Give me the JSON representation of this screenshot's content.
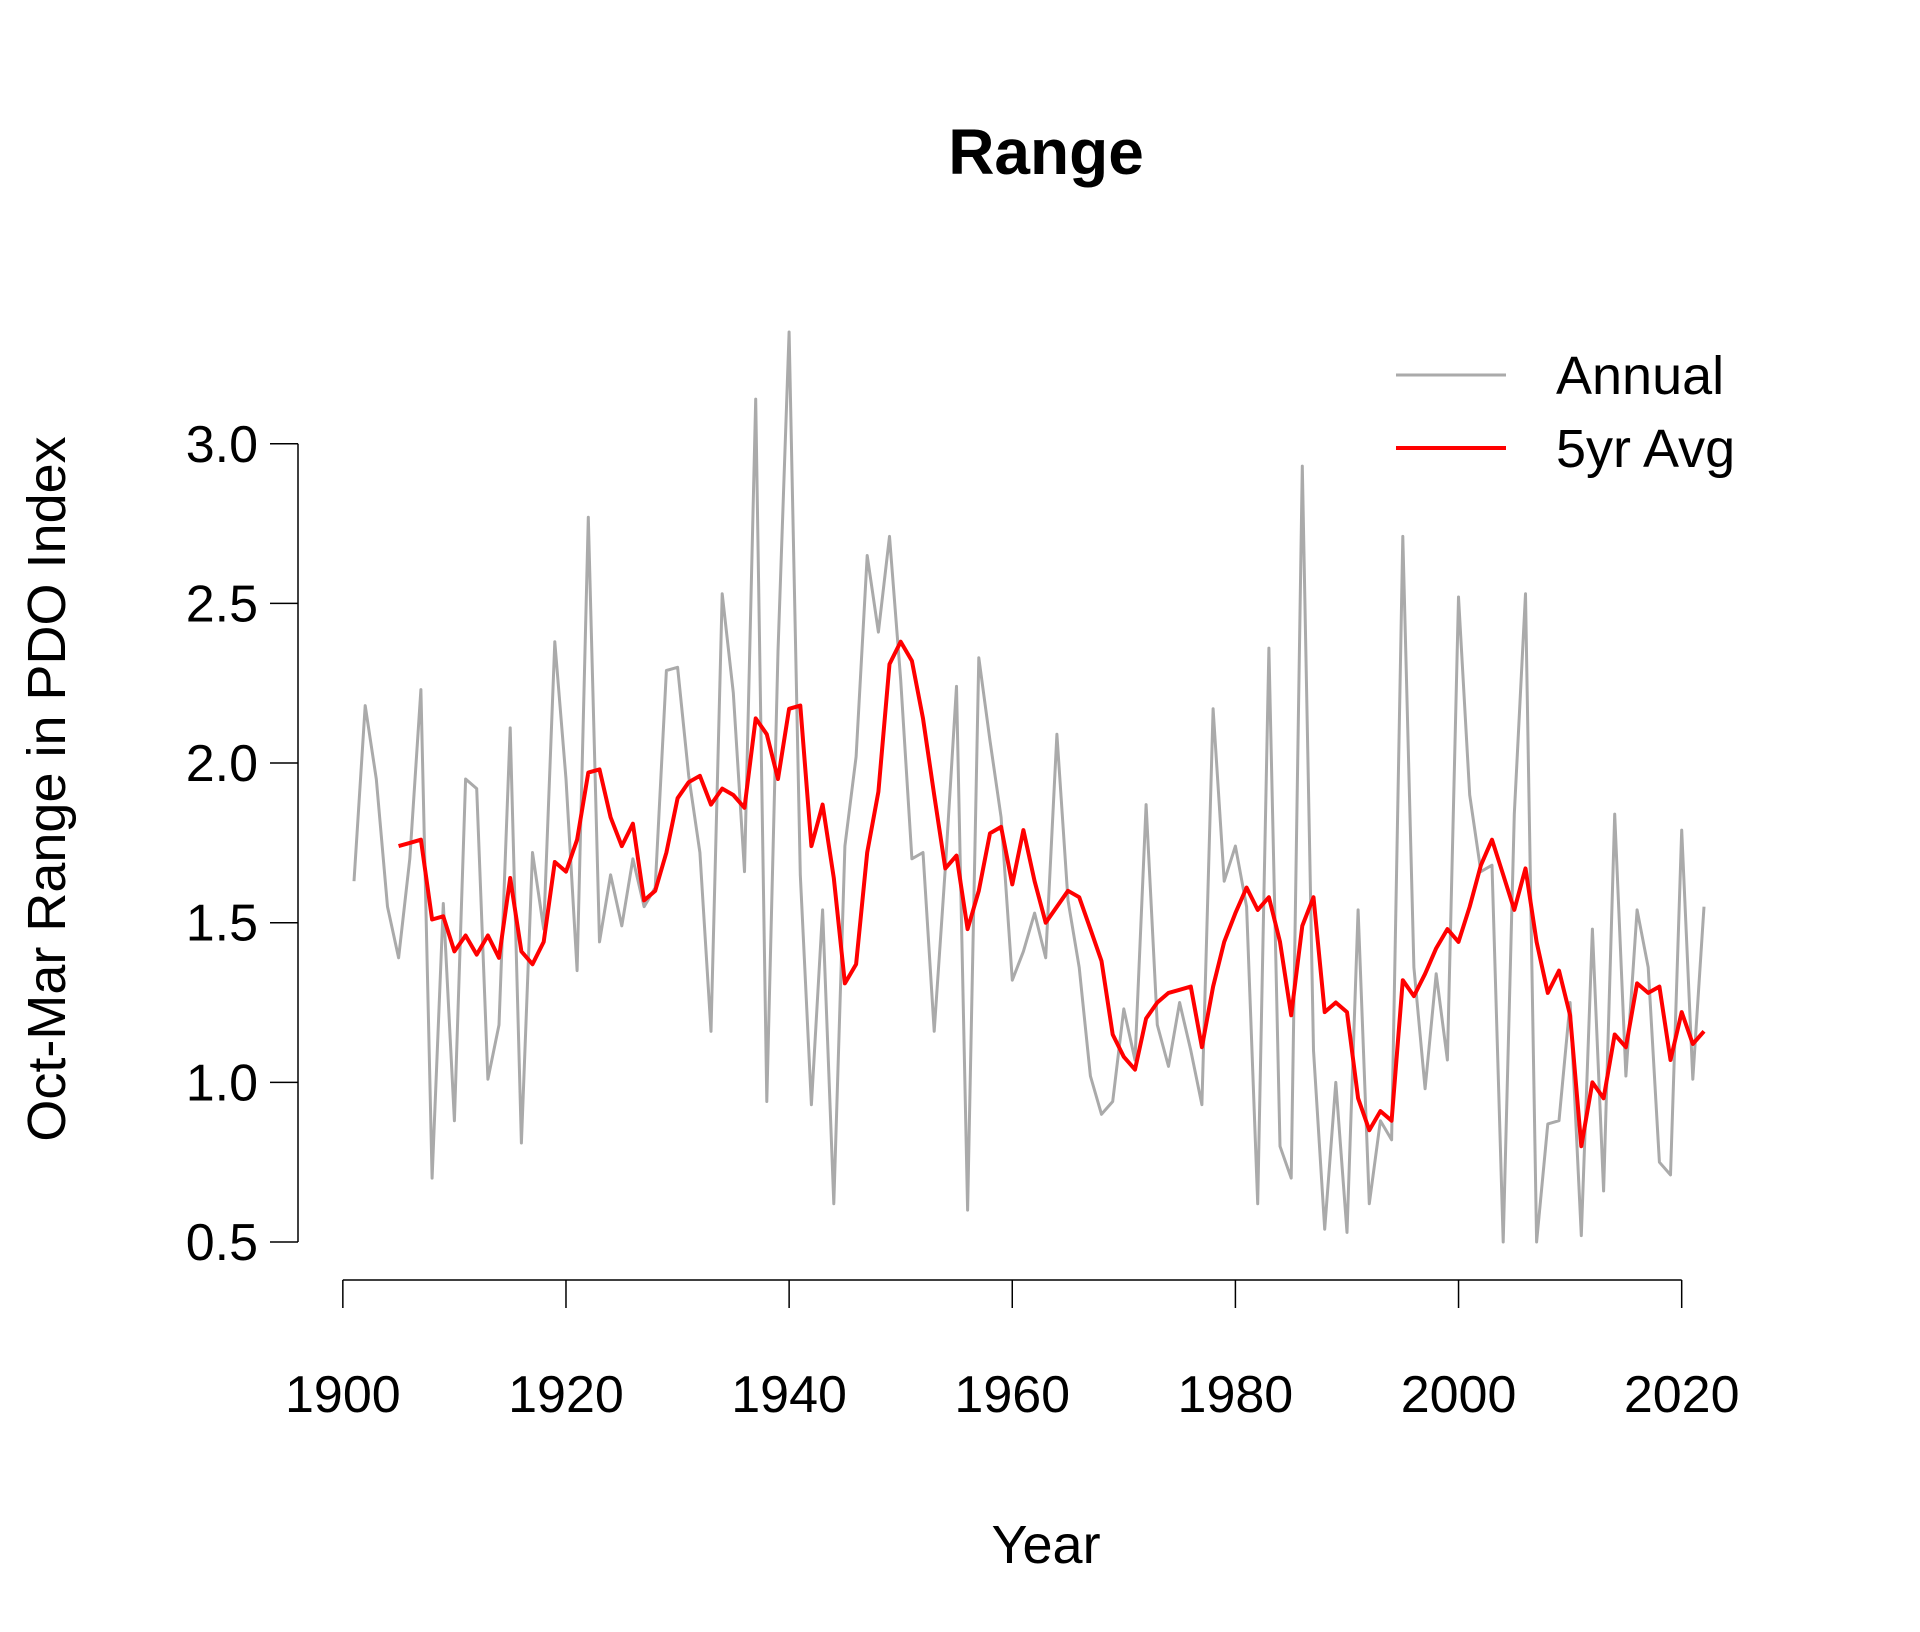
{
  "chart_data": {
    "type": "line",
    "title": "Range",
    "xlabel": "Year",
    "ylabel": "Oct-Mar Range in PDO Index",
    "xlim": [
      1901,
      2022
    ],
    "ylim": [
      0.5,
      3.35
    ],
    "xticks": [
      1900,
      1920,
      1940,
      1960,
      1980,
      2000,
      2020
    ],
    "xtick_labels": [
      "1900",
      "1920",
      "1940",
      "1960",
      "1980",
      "2000",
      "2020"
    ],
    "yticks": [
      0.5,
      1.0,
      1.5,
      2.0,
      2.5,
      3.0
    ],
    "ytick_labels": [
      "0.5",
      "1.0",
      "1.5",
      "2.0",
      "2.5",
      "3.0"
    ],
    "grid": false,
    "legend_position": "top-right",
    "series": [
      {
        "name": "Annual",
        "color": "#aaaaaa",
        "x": [
          1901,
          1902,
          1903,
          1904,
          1905,
          1906,
          1907,
          1908,
          1909,
          1910,
          1911,
          1912,
          1913,
          1914,
          1915,
          1916,
          1917,
          1918,
          1919,
          1920,
          1921,
          1922,
          1923,
          1924,
          1925,
          1926,
          1927,
          1928,
          1929,
          1930,
          1931,
          1932,
          1933,
          1934,
          1935,
          1936,
          1937,
          1938,
          1939,
          1940,
          1941,
          1942,
          1943,
          1944,
          1945,
          1946,
          1947,
          1948,
          1949,
          1950,
          1951,
          1952,
          1953,
          1954,
          1955,
          1956,
          1957,
          1958,
          1959,
          1960,
          1961,
          1962,
          1963,
          1964,
          1965,
          1966,
          1967,
          1968,
          1969,
          1970,
          1971,
          1972,
          1973,
          1974,
          1975,
          1976,
          1977,
          1978,
          1979,
          1980,
          1981,
          1982,
          1983,
          1984,
          1985,
          1986,
          1987,
          1988,
          1989,
          1990,
          1991,
          1992,
          1993,
          1994,
          1995,
          1996,
          1997,
          1998,
          1999,
          2000,
          2001,
          2002,
          2003,
          2004,
          2005,
          2006,
          2007,
          2008,
          2009,
          2010,
          2011,
          2012,
          2013,
          2014,
          2015,
          2016,
          2017,
          2018,
          2019,
          2020,
          2021,
          2022
        ],
        "values": [
          1.63,
          2.18,
          1.95,
          1.55,
          1.39,
          1.7,
          2.23,
          0.7,
          1.56,
          0.88,
          1.95,
          1.92,
          1.01,
          1.18,
          2.11,
          0.81,
          1.72,
          1.48,
          2.38,
          1.95,
          1.35,
          2.77,
          1.44,
          1.65,
          1.49,
          1.7,
          1.55,
          1.61,
          2.29,
          2.3,
          1.96,
          1.72,
          1.16,
          2.53,
          2.22,
          1.66,
          3.14,
          0.94,
          2.35,
          3.35,
          1.65,
          0.93,
          1.54,
          0.62,
          1.74,
          2.02,
          2.65,
          2.41,
          2.71,
          2.26,
          1.7,
          1.72,
          1.16,
          1.67,
          2.24,
          0.6,
          2.33,
          2.07,
          1.83,
          1.32,
          1.41,
          1.53,
          1.39,
          2.09,
          1.57,
          1.36,
          1.02,
          0.9,
          0.94,
          1.23,
          1.07,
          1.87,
          1.18,
          1.05,
          1.25,
          1.1,
          0.93,
          2.17,
          1.63,
          1.74,
          1.55,
          0.62,
          2.36,
          0.8,
          0.7,
          2.93,
          1.1,
          0.54,
          1.0,
          0.53,
          1.54,
          0.62,
          0.88,
          0.82,
          2.71,
          1.36,
          0.98,
          1.34,
          1.07,
          2.52,
          1.9,
          1.66,
          1.68,
          0.5,
          1.84,
          2.53,
          0.5,
          0.87,
          0.88,
          1.25,
          0.52,
          1.48,
          0.66,
          1.84,
          1.02,
          1.54,
          1.36,
          0.75,
          0.71,
          1.79,
          1.01,
          1.55
        ]
      },
      {
        "name": "5yr Avg",
        "color": "#ff0000",
        "x": [
          1905,
          1906,
          1907,
          1908,
          1909,
          1910,
          1911,
          1912,
          1913,
          1914,
          1915,
          1916,
          1917,
          1918,
          1919,
          1920,
          1921,
          1922,
          1923,
          1924,
          1925,
          1926,
          1927,
          1928,
          1929,
          1930,
          1931,
          1932,
          1933,
          1934,
          1935,
          1936,
          1937,
          1938,
          1939,
          1940,
          1941,
          1942,
          1943,
          1944,
          1945,
          1946,
          1947,
          1948,
          1949,
          1950,
          1951,
          1952,
          1953,
          1954,
          1955,
          1956,
          1957,
          1958,
          1959,
          1960,
          1961,
          1962,
          1963,
          1964,
          1965,
          1966,
          1967,
          1968,
          1969,
          1970,
          1971,
          1972,
          1973,
          1974,
          1975,
          1976,
          1977,
          1978,
          1979,
          1980,
          1981,
          1982,
          1983,
          1984,
          1985,
          1986,
          1987,
          1988,
          1989,
          1990,
          1991,
          1992,
          1993,
          1994,
          1995,
          1996,
          1997,
          1998,
          1999,
          2000,
          2001,
          2002,
          2003,
          2004,
          2005,
          2006,
          2007,
          2008,
          2009,
          2010,
          2011,
          2012,
          2013,
          2014,
          2015,
          2016,
          2017,
          2018,
          2019,
          2020,
          2021,
          2022
        ],
        "values": [
          1.74,
          1.75,
          1.76,
          1.51,
          1.52,
          1.41,
          1.46,
          1.4,
          1.46,
          1.39,
          1.64,
          1.41,
          1.37,
          1.44,
          1.69,
          1.66,
          1.76,
          1.97,
          1.98,
          1.83,
          1.74,
          1.81,
          1.57,
          1.6,
          1.72,
          1.89,
          1.94,
          1.96,
          1.87,
          1.92,
          1.9,
          1.86,
          2.14,
          2.09,
          1.95,
          2.17,
          2.18,
          1.74,
          1.87,
          1.64,
          1.31,
          1.37,
          1.72,
          1.91,
          2.31,
          2.38,
          2.32,
          2.14,
          1.9,
          1.67,
          1.71,
          1.48,
          1.6,
          1.78,
          1.8,
          1.62,
          1.79,
          1.63,
          1.5,
          1.55,
          1.6,
          1.58,
          1.48,
          1.38,
          1.15,
          1.08,
          1.04,
          1.2,
          1.25,
          1.28,
          1.29,
          1.3,
          1.11,
          1.3,
          1.44,
          1.53,
          1.61,
          1.54,
          1.58,
          1.44,
          1.21,
          1.49,
          1.58,
          1.22,
          1.25,
          1.22,
          0.95,
          0.85,
          0.91,
          0.88,
          1.32,
          1.27,
          1.34,
          1.42,
          1.48,
          1.44,
          1.55,
          1.68,
          1.76,
          1.65,
          1.54,
          1.67,
          1.44,
          1.28,
          1.35,
          1.21,
          0.8,
          1.0,
          0.95,
          1.15,
          1.11,
          1.31,
          1.28,
          1.3,
          1.07,
          1.22,
          1.12,
          1.16
        ]
      }
    ]
  }
}
